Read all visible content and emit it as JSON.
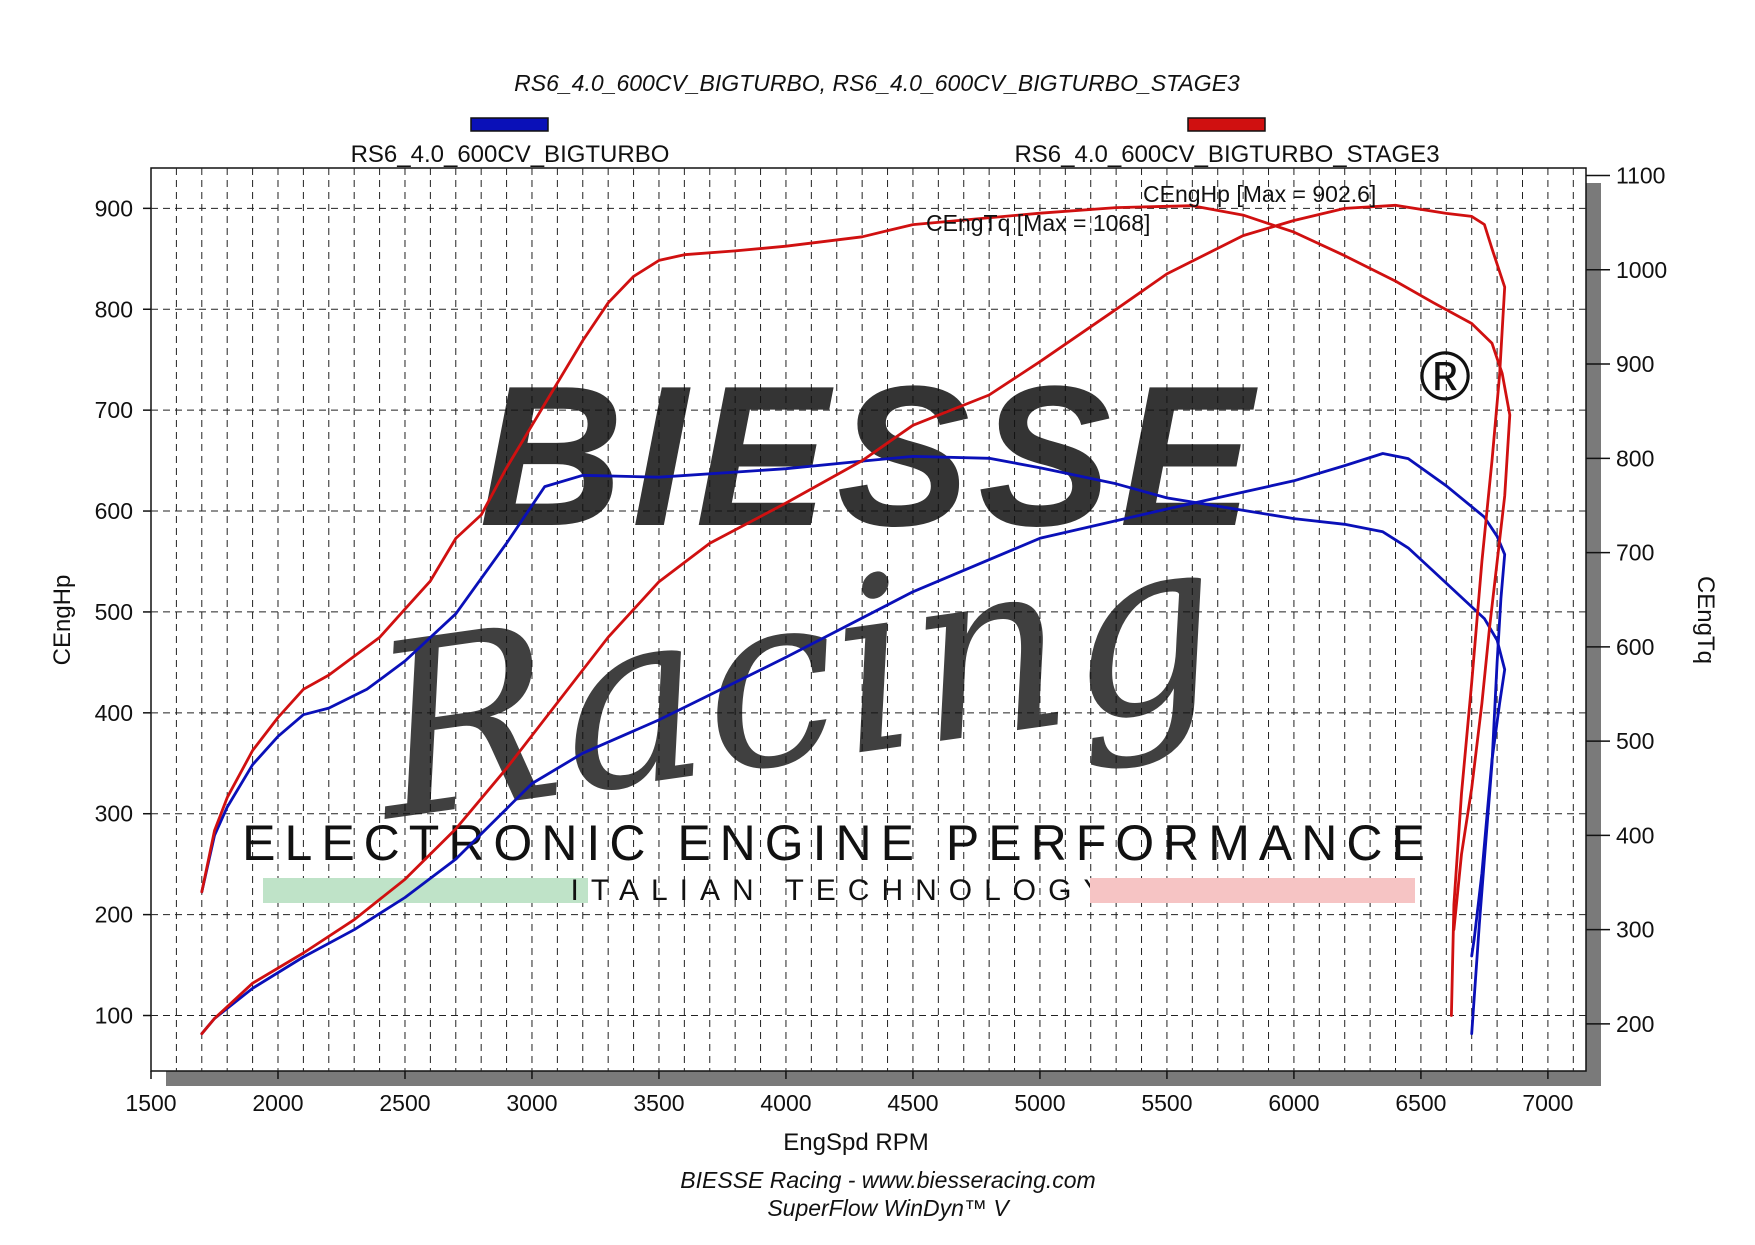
{
  "title": "RS6_4.0_600CV_BIGTURBO, RS6_4.0_600CV_BIGTURBO_STAGE3",
  "footer": {
    "line1": "BIESSE Racing - www.biesseracing.com",
    "line2": "SuperFlow WinDyn™ V"
  },
  "watermark": {
    "brand": "BIESSE",
    "registered": "®",
    "script": "Racing",
    "tagline": "ELECTRONIC ENGINE PERFORMANCE",
    "subtag": "ITALIAN TECHNOLOGY",
    "colors": {
      "brand": "#c8c8c8",
      "script": "#f4b8b8",
      "green_bar": "#bfe3c8",
      "red_bar": "#f6c4c4"
    }
  },
  "legend": [
    {
      "name": "RS6_4.0_600CV_BIGTURBO",
      "color": "#0a10b8"
    },
    {
      "name": "RS6_4.0_600CV_BIGTURBO_STAGE3",
      "color": "#d01010"
    }
  ],
  "max_labels": {
    "hp": "CEngHp [Max = 902.6]",
    "tq": "CEngTq [Max = 1068]"
  },
  "chart_data": {
    "type": "line",
    "title": "RS6_4.0_600CV_BIGTURBO, RS6_4.0_600CV_BIGTURBO_STAGE3",
    "xlabel": "EngSpd RPM",
    "ylabel_left": "CEngHp",
    "ylabel_right": "CEngTq",
    "xlim": [
      1500,
      7150
    ],
    "ylim_left": [
      45,
      940
    ],
    "ylim_right": [
      150,
      1108
    ],
    "x_ticks": [
      1500,
      2000,
      2500,
      3000,
      3500,
      4000,
      4500,
      5000,
      5500,
      6000,
      6500,
      7000
    ],
    "y_left_ticks": [
      100,
      200,
      300,
      400,
      500,
      600,
      700,
      800,
      900
    ],
    "y_right_ticks": [
      200,
      300,
      400,
      500,
      600,
      700,
      800,
      900,
      1000,
      1100
    ],
    "grid": true,
    "legend_position": "top",
    "series": [
      {
        "name": "RS6_4.0_600CV_BIGTURBO",
        "metric": "CEngHp",
        "axis": "left",
        "color": "#0a10b8",
        "points": [
          [
            1700,
            82
          ],
          [
            1750,
            97
          ],
          [
            1900,
            127
          ],
          [
            2100,
            158
          ],
          [
            2300,
            185
          ],
          [
            2500,
            217
          ],
          [
            2700,
            255
          ],
          [
            2900,
            305
          ],
          [
            3000,
            330
          ],
          [
            3200,
            360
          ],
          [
            3500,
            393
          ],
          [
            4000,
            455
          ],
          [
            4500,
            520
          ],
          [
            5000,
            573
          ],
          [
            5500,
            602
          ],
          [
            6000,
            630
          ],
          [
            6200,
            645
          ],
          [
            6350,
            657
          ],
          [
            6450,
            652
          ],
          [
            6600,
            625
          ],
          [
            6750,
            594
          ],
          [
            6800,
            575
          ],
          [
            6830,
            557
          ],
          [
            6815,
            513
          ],
          [
            6800,
            450
          ],
          [
            6780,
            350
          ],
          [
            6750,
            255
          ],
          [
            6730,
            190
          ],
          [
            6700,
            82
          ]
        ]
      },
      {
        "name": "RS6_4.0_600CV_BIGTURBO",
        "metric": "CEngTq",
        "axis": "right",
        "color": "#0a10b8",
        "points": [
          [
            1700,
            340
          ],
          [
            1750,
            400
          ],
          [
            1800,
            430
          ],
          [
            1900,
            475
          ],
          [
            2000,
            505
          ],
          [
            2100,
            528
          ],
          [
            2200,
            535
          ],
          [
            2350,
            555
          ],
          [
            2500,
            585
          ],
          [
            2700,
            635
          ],
          [
            2900,
            710
          ],
          [
            3050,
            770
          ],
          [
            3200,
            782
          ],
          [
            3500,
            780
          ],
          [
            4000,
            789
          ],
          [
            4300,
            797
          ],
          [
            4500,
            802
          ],
          [
            4800,
            800
          ],
          [
            5000,
            790
          ],
          [
            5300,
            773
          ],
          [
            5500,
            758
          ],
          [
            6000,
            736
          ],
          [
            6200,
            730
          ],
          [
            6350,
            722
          ],
          [
            6450,
            705
          ],
          [
            6550,
            680
          ],
          [
            6650,
            655
          ],
          [
            6750,
            630
          ],
          [
            6800,
            607
          ],
          [
            6830,
            576
          ],
          [
            6810,
            540
          ],
          [
            6780,
            480
          ],
          [
            6760,
            420
          ],
          [
            6740,
            360
          ],
          [
            6710,
            290
          ],
          [
            6700,
            272
          ]
        ]
      },
      {
        "name": "RS6_4.0_600CV_BIGTURBO_STAGE3",
        "metric": "CEngHp",
        "axis": "left",
        "color": "#d01010",
        "points": [
          [
            1700,
            82
          ],
          [
            1750,
            97
          ],
          [
            1900,
            132
          ],
          [
            2100,
            162
          ],
          [
            2300,
            195
          ],
          [
            2500,
            235
          ],
          [
            2700,
            285
          ],
          [
            2900,
            345
          ],
          [
            3100,
            410
          ],
          [
            3300,
            475
          ],
          [
            3500,
            530
          ],
          [
            3700,
            568
          ],
          [
            4000,
            608
          ],
          [
            4300,
            650
          ],
          [
            4500,
            685
          ],
          [
            4800,
            715
          ],
          [
            5000,
            748
          ],
          [
            5300,
            800
          ],
          [
            5500,
            835
          ],
          [
            5800,
            873
          ],
          [
            6000,
            888
          ],
          [
            6200,
            900
          ],
          [
            6400,
            903
          ],
          [
            6600,
            895
          ],
          [
            6700,
            892
          ],
          [
            6750,
            884
          ],
          [
            6780,
            860
          ],
          [
            6830,
            822
          ],
          [
            6810,
            735
          ],
          [
            6780,
            650
          ],
          [
            6740,
            550
          ],
          [
            6700,
            430
          ],
          [
            6660,
            320
          ],
          [
            6630,
            210
          ],
          [
            6620,
            100
          ]
        ]
      },
      {
        "name": "RS6_4.0_600CV_BIGTURBO_STAGE3",
        "metric": "CEngTq",
        "axis": "right",
        "color": "#d01010",
        "points": [
          [
            1700,
            340
          ],
          [
            1750,
            405
          ],
          [
            1800,
            440
          ],
          [
            1900,
            490
          ],
          [
            2000,
            525
          ],
          [
            2100,
            555
          ],
          [
            2200,
            570
          ],
          [
            2400,
            610
          ],
          [
            2500,
            640
          ],
          [
            2600,
            670
          ],
          [
            2700,
            715
          ],
          [
            2800,
            740
          ],
          [
            2900,
            790
          ],
          [
            3000,
            835
          ],
          [
            3100,
            880
          ],
          [
            3200,
            925
          ],
          [
            3300,
            965
          ],
          [
            3400,
            993
          ],
          [
            3500,
            1010
          ],
          [
            3600,
            1016
          ],
          [
            3800,
            1020
          ],
          [
            4000,
            1025
          ],
          [
            4300,
            1035
          ],
          [
            4500,
            1048
          ],
          [
            5000,
            1060
          ],
          [
            5300,
            1066
          ],
          [
            5600,
            1068
          ],
          [
            5800,
            1058
          ],
          [
            6000,
            1040
          ],
          [
            6200,
            1015
          ],
          [
            6400,
            988
          ],
          [
            6550,
            965
          ],
          [
            6700,
            943
          ],
          [
            6780,
            922
          ],
          [
            6820,
            890
          ],
          [
            6850,
            846
          ],
          [
            6830,
            760
          ],
          [
            6800,
            690
          ],
          [
            6770,
            620
          ],
          [
            6740,
            540
          ],
          [
            6700,
            450
          ],
          [
            6660,
            380
          ],
          [
            6630,
            300
          ]
        ]
      }
    ]
  }
}
